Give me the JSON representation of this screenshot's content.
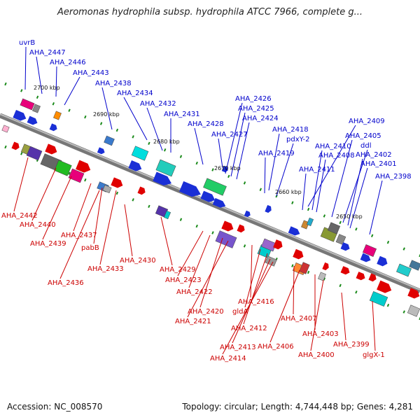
{
  "title": "Aeromonas hydrophila subsp. hydrophila ATCC 7966, complete g...",
  "footer": {
    "accession": "Accession: NC_008570",
    "summary": "Topology: circular; Length: 4,744,448 bp; Genes: 4,281"
  },
  "colors": {
    "backbone": "#7a7a7a",
    "forward_label": "#0000cc",
    "reverse_label": "#cc0000",
    "gene_blue": "#1a2fd6",
    "gene_red": "#e00000",
    "tick": "#1a8a1a"
  },
  "scale_ticks": [
    "2700 kbp",
    "2690 kbp",
    "2680 kbp",
    "2670 kbp",
    "2660 kbp",
    "2650 kbp"
  ],
  "forward_labels": [
    "uvrB",
    "AHA_2447",
    "AHA_2446",
    "AHA_2443",
    "AHA_2438",
    "AHA_2434",
    "AHA_2432",
    "AHA_2431",
    "AHA_2428",
    "AHA_2427",
    "AHA_2426",
    "AHA_2425",
    "AHA_2424",
    "AHA_2418",
    "pdxY-2",
    "AHA_2419",
    "AHA_2409",
    "AHA_2410",
    "AHA_2408",
    "AHA_2405",
    "ddl",
    "AHA_2411",
    "AHA_2402",
    "AHA_2401",
    "AHA_2398"
  ],
  "reverse_labels": [
    "AHA_2442",
    "AHA_2440",
    "AHA_2439",
    "AHA_2437",
    "pabB",
    "AHA_2436",
    "AHA_2433",
    "AHA_2430",
    "AHA_2429",
    "AHA_2423",
    "AHA_2422",
    "AHA_2420",
    "AHA_2421",
    "AHA_2416",
    "gldA",
    "AHA_2412",
    "AHA_2413",
    "AHA_2414",
    "AHA_2407",
    "AHA_2406",
    "AHA_2403",
    "AHA_2400",
    "AHA_2399",
    "glgX-1"
  ]
}
